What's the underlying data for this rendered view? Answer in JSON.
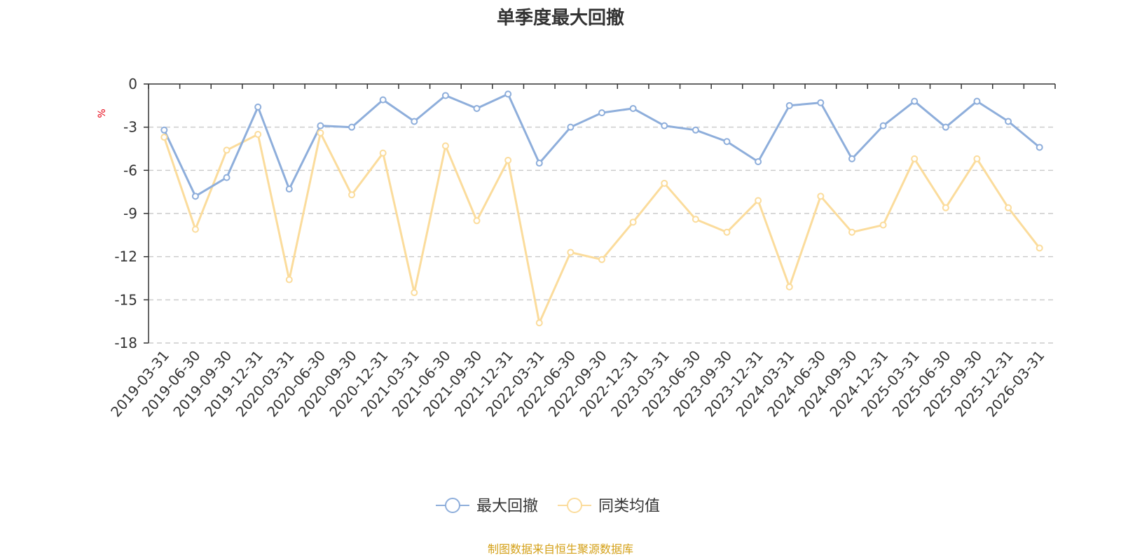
{
  "chart_data": {
    "type": "line",
    "title": "单季度最大回撤",
    "ylabel": "%",
    "xlabel": "",
    "ylim": [
      -18,
      0
    ],
    "yticks": [
      0,
      -3,
      -6,
      -9,
      -12,
      -15,
      -18
    ],
    "grid": true,
    "categories": [
      "2019-03-31",
      "2019-06-30",
      "2019-09-30",
      "2019-12-31",
      "2020-03-31",
      "2020-06-30",
      "2020-09-30",
      "2020-12-31",
      "2021-03-31",
      "2021-06-30",
      "2021-09-30",
      "2021-12-31",
      "2022-03-31",
      "2022-06-30",
      "2022-09-30",
      "2022-12-31",
      "2023-03-31",
      "2023-06-30",
      "2023-09-30",
      "2023-12-31",
      "2024-03-31",
      "2024-06-30",
      "2024-09-30",
      "2024-12-31",
      "2025-03-31",
      "2025-06-30",
      "2025-09-30",
      "2025-12-31",
      "2026-03-31"
    ],
    "series": [
      {
        "name": "最大回撤",
        "color": "#8eaedb",
        "values": [
          -3.2,
          -7.8,
          -6.5,
          -1.6,
          -7.3,
          -2.9,
          -3.0,
          -1.1,
          -2.6,
          -0.8,
          -1.7,
          -0.7,
          -5.5,
          -3.0,
          -2.0,
          -1.7,
          -2.9,
          -3.2,
          -4.0,
          -5.4,
          -1.5,
          -1.3,
          -5.2,
          -2.9,
          -1.2,
          -3.0,
          -1.2,
          -2.6,
          -4.4
        ]
      },
      {
        "name": "同类均值",
        "color": "#fbdc9c",
        "values": [
          -3.7,
          -10.1,
          -4.6,
          -3.5,
          -13.6,
          -3.4,
          -7.7,
          -4.8,
          -14.5,
          -4.3,
          -9.5,
          -5.3,
          -16.6,
          -11.7,
          -12.2,
          -9.6,
          -6.9,
          -9.4,
          -10.3,
          -8.1,
          -14.1,
          -7.8,
          -10.3,
          -9.8,
          -5.2,
          -8.6,
          -5.2,
          -8.6,
          -11.4
        ]
      }
    ],
    "legend_position": "bottom-center"
  },
  "axis_line_color": "#333333",
  "grid_color": "#cccccc",
  "unit_color": "#e60012",
  "source_text": "制图数据来自恒生聚源数据库",
  "source_color": "#d4a017"
}
